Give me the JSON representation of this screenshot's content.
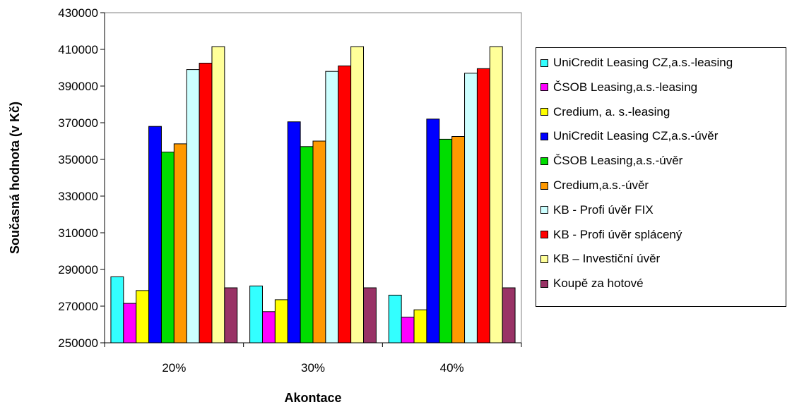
{
  "chart_data": {
    "type": "bar",
    "xlabel": "Akontace",
    "ylabel": "Současná hodnota (v Kč)",
    "ylim": [
      250000,
      430000
    ],
    "ytick_step": 20000,
    "grid": false,
    "legend_position": "right",
    "categories": [
      "20%",
      "30%",
      "40%"
    ],
    "series": [
      {
        "name": "UniCredit Leasing CZ,a.s.-leasing",
        "color": "#33FFFF",
        "values": [
          286000,
          281000,
          276000
        ]
      },
      {
        "name": "ČSOB Leasing,a.s.-leasing",
        "color": "#FF00FF",
        "values": [
          271500,
          267000,
          264000
        ]
      },
      {
        "name": "Credium, a. s.-leasing",
        "color": "#FFFF00",
        "values": [
          278500,
          273500,
          268000
        ]
      },
      {
        "name": "UniCredit Leasing CZ,a.s.-úvěr",
        "color": "#0000FF",
        "values": [
          368000,
          370500,
          372000
        ]
      },
      {
        "name": "ČSOB Leasing,a.s.-úvěr",
        "color": "#00DD00",
        "values": [
          354000,
          357000,
          361000
        ]
      },
      {
        "name": "Credium,a.s.-úvěr",
        "color": "#FF9900",
        "values": [
          358500,
          360000,
          362500
        ]
      },
      {
        "name": "KB - Profi úvěr FIX",
        "color": "#CCFFFF",
        "values": [
          399000,
          398000,
          397000
        ]
      },
      {
        "name": "KB - Profi úvěr splácený",
        "color": "#FF0000",
        "values": [
          402500,
          401000,
          399500
        ]
      },
      {
        "name": "KB – Investiční úvěr",
        "color": "#FFFF99",
        "values": [
          411500,
          411500,
          411500
        ]
      },
      {
        "name": "Koupě za hotové",
        "color": "#993366",
        "values": [
          280000,
          280000,
          280000
        ]
      }
    ]
  }
}
